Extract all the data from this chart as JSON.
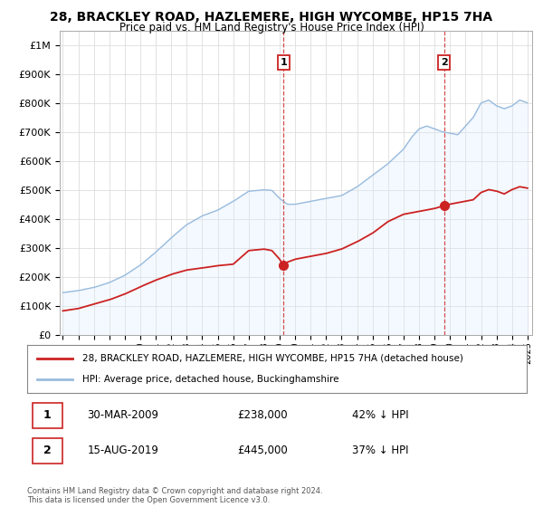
{
  "title": "28, BRACKLEY ROAD, HAZLEMERE, HIGH WYCOMBE, HP15 7HA",
  "subtitle": "Price paid vs. HM Land Registry's House Price Index (HPI)",
  "ytick_values": [
    0,
    100000,
    200000,
    300000,
    400000,
    500000,
    600000,
    700000,
    800000,
    900000,
    1000000
  ],
  "ylim": [
    0,
    1050000
  ],
  "xlim_start": 1994.8,
  "xlim_end": 2025.3,
  "hpi_color": "#99bbdd",
  "hpi_fill_color": "#ddeeff",
  "price_color": "#cc2222",
  "transaction_1": {
    "date": "30-MAR-2009",
    "price": 238000,
    "label": "1",
    "year": 2009.25
  },
  "transaction_2": {
    "date": "15-AUG-2019",
    "price": 445000,
    "label": "2",
    "year": 2019.62
  },
  "legend_property": "28, BRACKLEY ROAD, HAZLEMERE, HIGH WYCOMBE, HP15 7HA (detached house)",
  "legend_hpi": "HPI: Average price, detached house, Buckinghamshire",
  "footer": "Contains HM Land Registry data © Crown copyright and database right 2024.\nThis data is licensed under the Open Government Licence v3.0.",
  "grid_color": "#dddddd",
  "background_color": "#ffffff",
  "hpi_anchors_x": [
    1995,
    1996,
    1997,
    1998,
    1999,
    2000,
    2001,
    2002,
    2003,
    2004,
    2005,
    2006,
    2007,
    2008,
    2008.5,
    2009,
    2009.5,
    2010,
    2011,
    2012,
    2013,
    2014,
    2015,
    2016,
    2017,
    2017.5,
    2018,
    2018.5,
    2019,
    2019.5,
    2020,
    2020.5,
    2021,
    2021.5,
    2022,
    2022.5,
    2023,
    2023.5,
    2024,
    2024.5,
    2025
  ],
  "hpi_anchors_y": [
    145000,
    152000,
    163000,
    180000,
    205000,
    240000,
    285000,
    335000,
    380000,
    410000,
    430000,
    460000,
    495000,
    500000,
    498000,
    470000,
    450000,
    450000,
    460000,
    470000,
    480000,
    510000,
    550000,
    590000,
    640000,
    680000,
    710000,
    720000,
    710000,
    700000,
    695000,
    690000,
    720000,
    750000,
    800000,
    810000,
    790000,
    780000,
    790000,
    810000,
    800000
  ],
  "price_anchors_x": [
    1995,
    1996,
    1997,
    1998,
    1999,
    2000,
    2001,
    2002,
    2003,
    2004,
    2005,
    2006,
    2007,
    2008,
    2008.5,
    2009.0,
    2009.25,
    2009.5,
    2010,
    2011,
    2012,
    2013,
    2014,
    2015,
    2016,
    2017,
    2018,
    2019,
    2019.62,
    2020,
    2020.5,
    2021,
    2021.5,
    2022,
    2022.5,
    2023,
    2023.5,
    2024,
    2024.5,
    2025
  ],
  "price_anchors_y": [
    82000,
    90000,
    105000,
    120000,
    140000,
    165000,
    188000,
    208000,
    223000,
    230000,
    238000,
    243000,
    290000,
    295000,
    290000,
    260000,
    238000,
    250000,
    260000,
    270000,
    280000,
    295000,
    320000,
    350000,
    390000,
    415000,
    425000,
    435000,
    445000,
    450000,
    455000,
    460000,
    465000,
    490000,
    500000,
    495000,
    485000,
    500000,
    510000,
    505000
  ]
}
